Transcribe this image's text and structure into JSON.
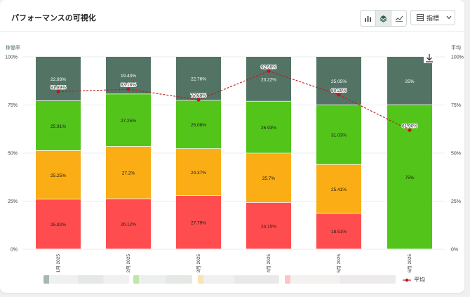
{
  "header": {
    "title": "パフォーマンスの可視化",
    "metrics_label": "指標"
  },
  "view_buttons": [
    "bar-chart-icon",
    "stacked-layers-icon",
    "line-chart-icon"
  ],
  "colors": {
    "gray": "#537465",
    "green": "#52c41a",
    "orange": "#faad14",
    "red": "#ff4d4f",
    "avg_line": "#c0161e"
  },
  "chart_data": {
    "type": "bar",
    "stacked": true,
    "left_axis_label": "稼働率",
    "right_axis_label": "平均",
    "y_ticks": [
      "0%",
      "25%",
      "50%",
      "75%",
      "100%"
    ],
    "ylim": [
      0,
      100
    ],
    "categories": [
      "1月 2025",
      "2月 2025",
      "3月 2025",
      "4月 2025",
      "5月 2025",
      "6月 2025"
    ],
    "series": [
      {
        "color_key": "red",
        "values": [
          25.92,
          26.12,
          27.79,
          24.15,
          18.51,
          0
        ],
        "labels": [
          "25.92%",
          "26.12%",
          "27.79%",
          "24.15%",
          "18.51%",
          ""
        ]
      },
      {
        "color_key": "orange",
        "values": [
          25.25,
          27.2,
          24.37,
          25.7,
          25.41,
          0
        ],
        "labels": [
          "25.25%",
          "27.2%",
          "24.37%",
          "25.7%",
          "25.41%",
          ""
        ]
      },
      {
        "color_key": "green",
        "values": [
          25.91,
          27.25,
          25.08,
          26.93,
          31.03,
          75
        ],
        "labels": [
          "25.91%",
          "27.25%",
          "25.08%",
          "26.93%",
          "31.03%",
          "75%"
        ]
      },
      {
        "color_key": "gray",
        "values": [
          22.93,
          19.43,
          22.76,
          23.22,
          25.05,
          25
        ],
        "labels": [
          "22.93%",
          "19.43%",
          "22.76%",
          "23.22%",
          "25.05%",
          "25%"
        ]
      }
    ],
    "average": {
      "name": "平均",
      "values": [
        81.89,
        83.18,
        77.69,
        92.59,
        80.29,
        61.9
      ],
      "labels": [
        "81.89%",
        "83.18%",
        "77.69%",
        "92.59%",
        "80.29%",
        "61.90%"
      ]
    }
  }
}
